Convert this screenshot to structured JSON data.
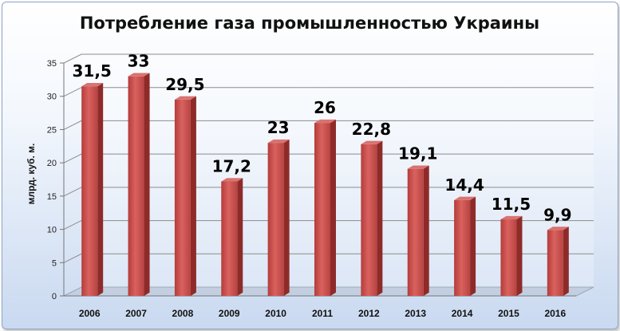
{
  "chart_data": {
    "type": "bar",
    "title": "Потребление газа промышленностью Украины",
    "xlabel": "",
    "ylabel": "млрд. куб. м.",
    "categories": [
      "2006",
      "2007",
      "2008",
      "2009",
      "2010",
      "2011",
      "2012",
      "2013",
      "2014",
      "2015",
      "2016"
    ],
    "values": [
      31.5,
      33,
      29.5,
      17.2,
      23,
      26,
      22.8,
      19.1,
      14.4,
      11.5,
      9.9
    ],
    "value_labels": [
      "31,5",
      "33",
      "29,5",
      "17,2",
      "23",
      "26",
      "22,8",
      "19,1",
      "14,4",
      "11,5",
      "9,9"
    ],
    "yticks": [
      "0",
      "5",
      "10",
      "15",
      "20",
      "25",
      "30",
      "35"
    ],
    "ylim": [
      0,
      35
    ],
    "grid": true,
    "legend": "none",
    "bar_color": "#c0504d"
  }
}
